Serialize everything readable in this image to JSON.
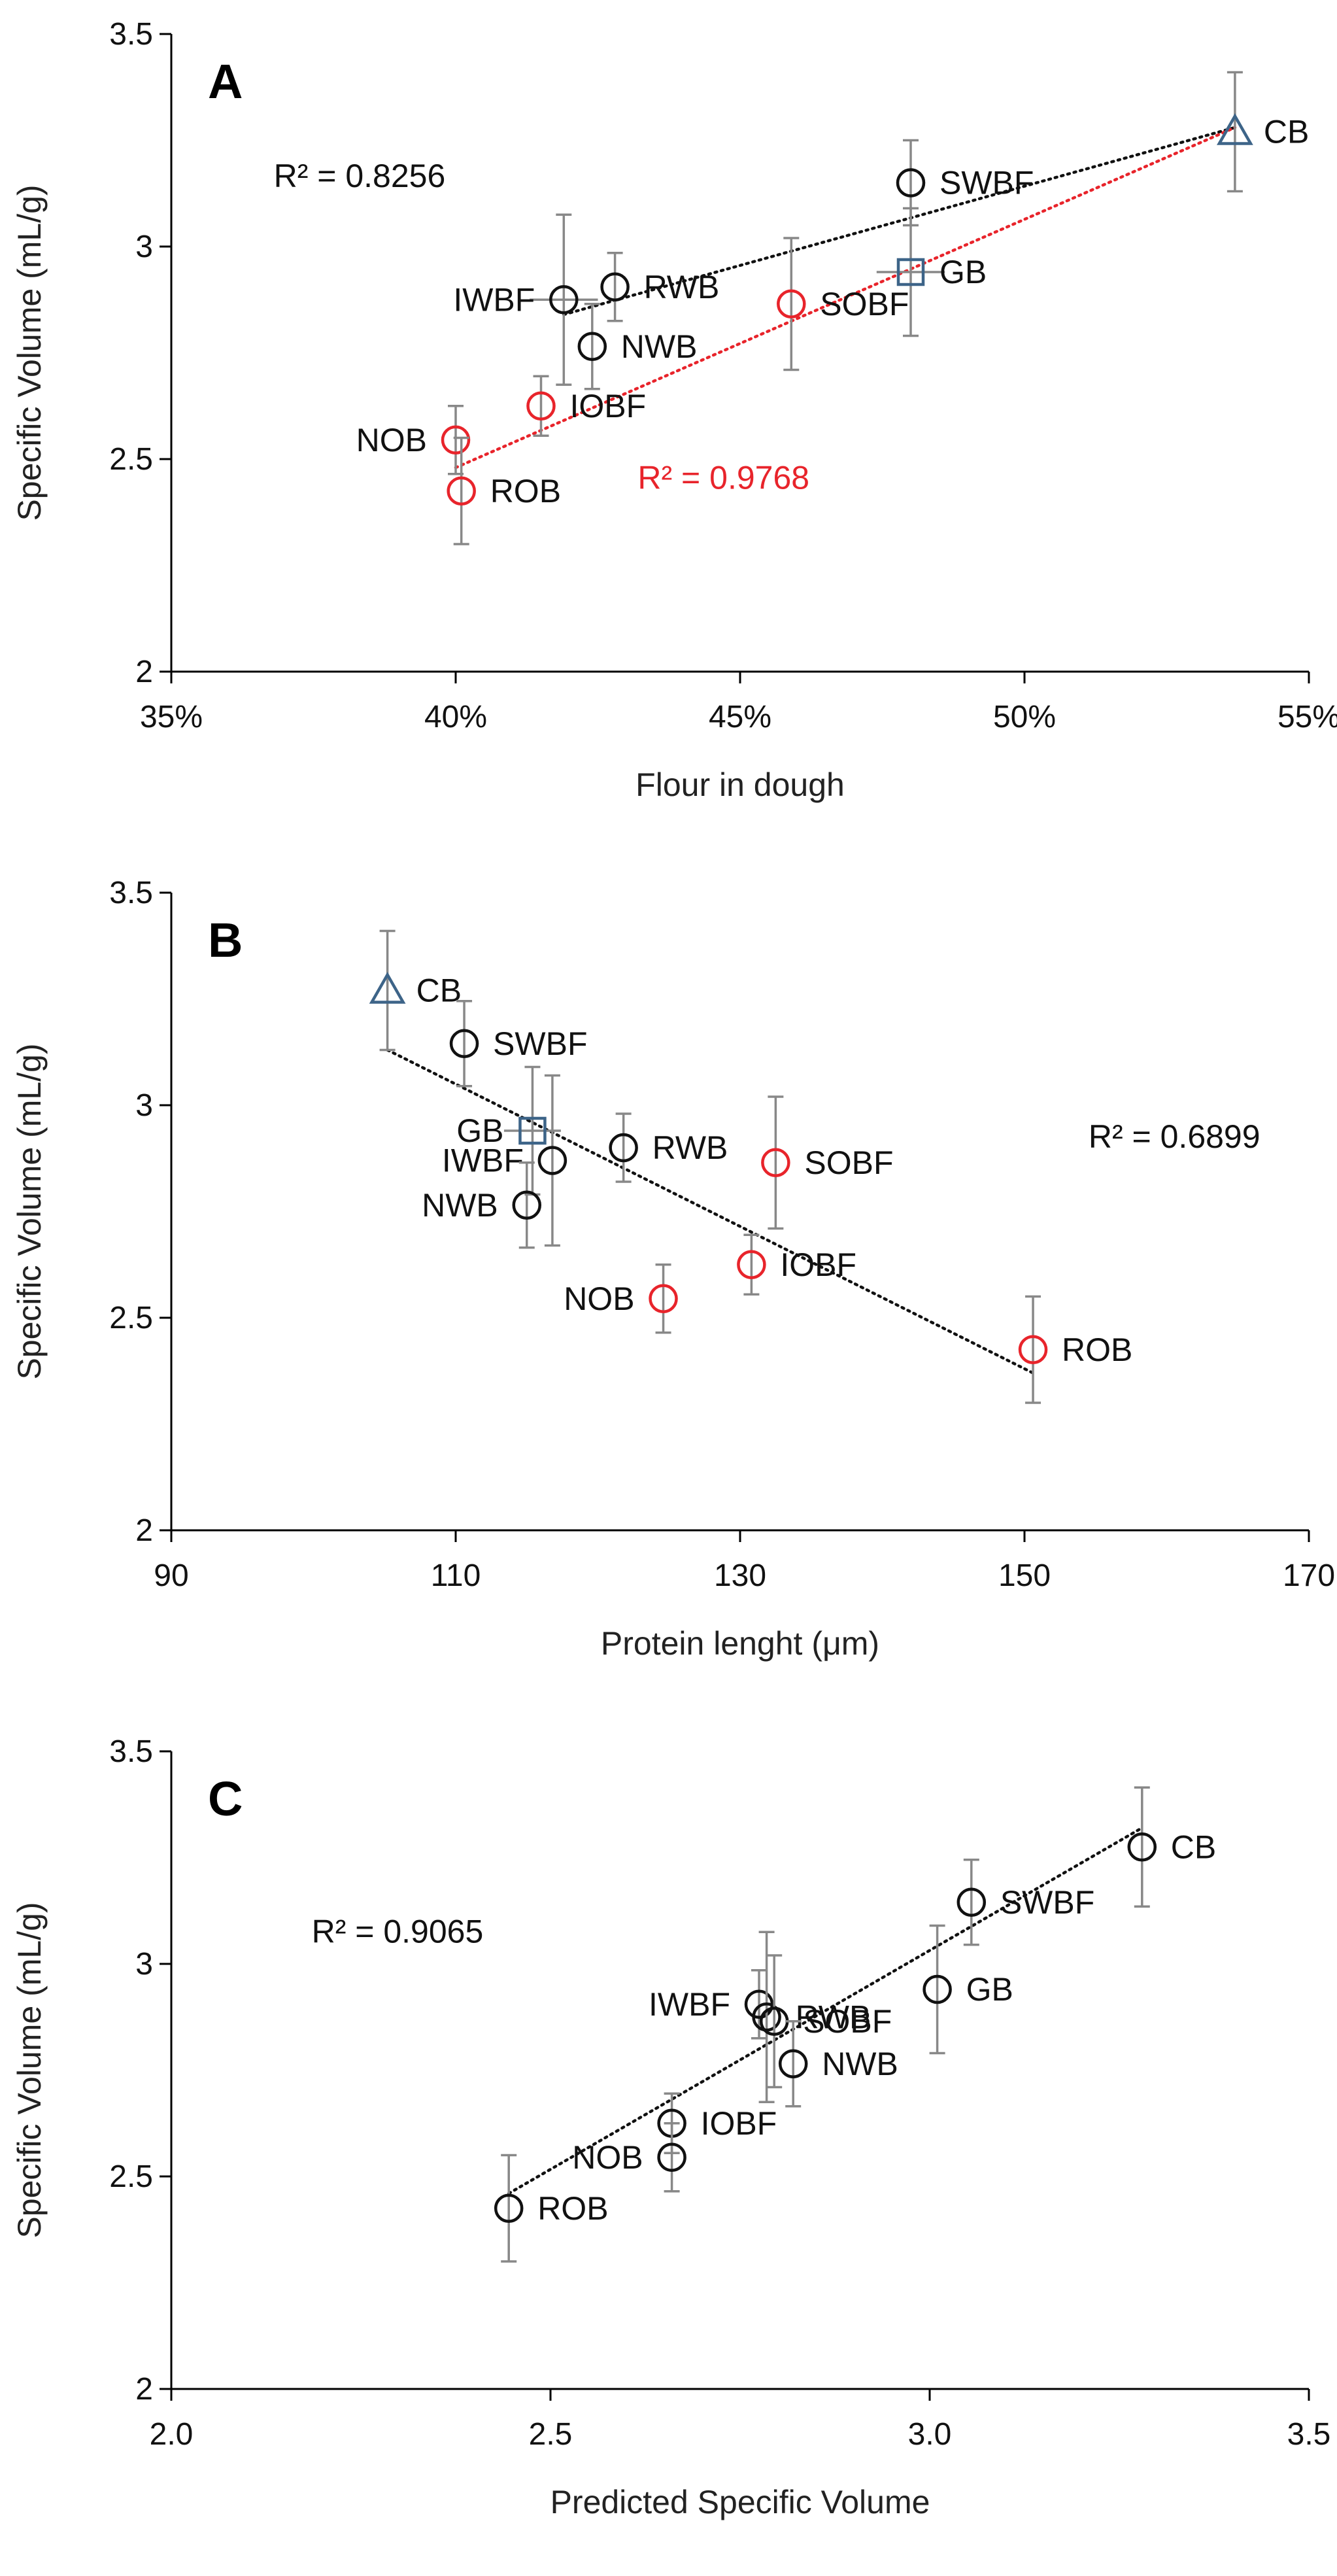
{
  "colors": {
    "black_series": "#111111",
    "red_series": "#e8242b",
    "blue_series": "#3d6488",
    "error_bar": "#888888",
    "axis": "#000000"
  },
  "chart_data": [
    {
      "type": "scatter",
      "panel_label": "A",
      "xlabel": "Flour in dough",
      "ylabel": "Specific Volume (mL/g)",
      "xlim": [
        0.35,
        0.55
      ],
      "ylim": [
        2,
        3.5
      ],
      "x_ticks": [
        0.35,
        0.4,
        0.45,
        0.5,
        0.55
      ],
      "x_tick_labels": [
        "35%",
        "40%",
        "45%",
        "50%",
        "55%"
      ],
      "y_ticks": [
        2,
        2.5,
        3,
        3.5
      ],
      "y_tick_labels": [
        "2",
        "2.5",
        "3",
        "3.5"
      ],
      "grid": false,
      "points": [
        {
          "label": "CB",
          "x": 0.537,
          "y": 3.27,
          "y_err": 0.14,
          "x_err": 0,
          "marker": "triangle",
          "color": "#3d6488",
          "label_pos": "right"
        },
        {
          "label": "SWBF",
          "x": 0.48,
          "y": 3.15,
          "y_err": 0.1,
          "x_err": 0,
          "marker": "circle",
          "color": "#111111",
          "label_pos": "right"
        },
        {
          "label": "GB",
          "x": 0.48,
          "y": 2.94,
          "y_err": 0.15,
          "x_err": 0.006,
          "marker": "square",
          "color": "#3d6488",
          "label_pos": "right"
        },
        {
          "label": "RWB",
          "x": 0.428,
          "y": 2.905,
          "y_err": 0.08,
          "x_err": 0,
          "marker": "circle",
          "color": "#111111",
          "label_pos": "right"
        },
        {
          "label": "IWBF",
          "x": 0.419,
          "y": 2.875,
          "y_err": 0.2,
          "x_err": 0.006,
          "marker": "circle",
          "color": "#111111",
          "label_pos": "left"
        },
        {
          "label": "SOBF",
          "x": 0.459,
          "y": 2.865,
          "y_err": 0.155,
          "x_err": 0,
          "marker": "circle",
          "color": "#e8242b",
          "label_pos": "right"
        },
        {
          "label": "NWB",
          "x": 0.424,
          "y": 2.765,
          "y_err": 0.1,
          "x_err": 0,
          "marker": "circle",
          "color": "#111111",
          "label_pos": "right"
        },
        {
          "label": "IOBF",
          "x": 0.415,
          "y": 2.625,
          "y_err": 0.07,
          "x_err": 0,
          "marker": "circle",
          "color": "#e8242b",
          "label_pos": "right"
        },
        {
          "label": "NOB",
          "x": 0.4,
          "y": 2.545,
          "y_err": 0.08,
          "x_err": 0,
          "marker": "circle",
          "color": "#e8242b",
          "label_pos": "left"
        },
        {
          "label": "ROB",
          "x": 0.401,
          "y": 2.425,
          "y_err": 0.125,
          "x_err": 0,
          "marker": "circle",
          "color": "#e8242b",
          "label_pos": "right"
        }
      ],
      "trendlines": [
        {
          "x": [
            0.419,
            0.537
          ],
          "y": [
            2.84,
            3.28
          ],
          "color": "#111111",
          "r2_label": "R² = 0.8256",
          "r2_anchor": [
            0.368,
            3.14
          ]
        },
        {
          "x": [
            0.4,
            0.537
          ],
          "y": [
            2.48,
            3.28
          ],
          "color": "#e8242b",
          "r2_label": "R² = 0.9768",
          "r2_anchor": [
            0.432,
            2.43
          ]
        }
      ]
    },
    {
      "type": "scatter",
      "panel_label": "B",
      "xlabel": "Protein lenght (μm)",
      "ylabel": "Specific Volume (mL/g)",
      "xlim": [
        90,
        170
      ],
      "ylim": [
        2,
        3.5
      ],
      "x_ticks": [
        90,
        110,
        130,
        150,
        170
      ],
      "x_tick_labels": [
        "90",
        "110",
        "130",
        "150",
        "170"
      ],
      "y_ticks": [
        2,
        2.5,
        3,
        3.5
      ],
      "y_tick_labels": [
        "2",
        "2.5",
        "3",
        "3.5"
      ],
      "grid": false,
      "points": [
        {
          "label": "CB",
          "x": 105.2,
          "y": 3.27,
          "y_err": 0.14,
          "x_err": 0,
          "marker": "triangle",
          "color": "#3d6488",
          "label_pos": "right"
        },
        {
          "label": "SWBF",
          "x": 110.6,
          "y": 3.145,
          "y_err": 0.1,
          "x_err": 0,
          "marker": "circle",
          "color": "#111111",
          "label_pos": "right"
        },
        {
          "label": "GB",
          "x": 115.4,
          "y": 2.94,
          "y_err": 0.15,
          "x_err": 2.0,
          "marker": "square",
          "color": "#3d6488",
          "label_pos": "left"
        },
        {
          "label": "RWB",
          "x": 121.8,
          "y": 2.9,
          "y_err": 0.08,
          "x_err": 0,
          "marker": "circle",
          "color": "#111111",
          "label_pos": "right"
        },
        {
          "label": "IWBF",
          "x": 116.8,
          "y": 2.87,
          "y_err": 0.2,
          "x_err": 0,
          "marker": "circle",
          "color": "#111111",
          "label_pos": "left"
        },
        {
          "label": "SOBF",
          "x": 132.5,
          "y": 2.865,
          "y_err": 0.155,
          "x_err": 0,
          "marker": "circle",
          "color": "#e8242b",
          "label_pos": "right"
        },
        {
          "label": "NWB",
          "x": 115.0,
          "y": 2.765,
          "y_err": 0.1,
          "x_err": 0,
          "marker": "circle",
          "color": "#111111",
          "label_pos": "left"
        },
        {
          "label": "IOBF",
          "x": 130.8,
          "y": 2.625,
          "y_err": 0.07,
          "x_err": 0,
          "marker": "circle",
          "color": "#e8242b",
          "label_pos": "right"
        },
        {
          "label": "NOB",
          "x": 124.6,
          "y": 2.545,
          "y_err": 0.08,
          "x_err": 0,
          "marker": "circle",
          "color": "#e8242b",
          "label_pos": "left"
        },
        {
          "label": "ROB",
          "x": 150.6,
          "y": 2.425,
          "y_err": 0.125,
          "x_err": 0,
          "marker": "circle",
          "color": "#e8242b",
          "label_pos": "right"
        }
      ],
      "trendlines": [
        {
          "x": [
            105.2,
            150.6
          ],
          "y": [
            3.13,
            2.37
          ],
          "color": "#111111",
          "r2_label": "R² = 0.6899",
          "r2_anchor": [
            154.5,
            2.9
          ]
        }
      ]
    },
    {
      "type": "scatter",
      "panel_label": "C",
      "xlabel": "Predicted Specific Volume",
      "ylabel": "Specific Volume (mL/g)",
      "xlim": [
        2.0,
        3.5
      ],
      "ylim": [
        2,
        3.5
      ],
      "x_ticks": [
        2.0,
        2.5,
        3.0,
        3.5
      ],
      "x_tick_labels": [
        "2.0",
        "2.5",
        "3.0",
        "3.5"
      ],
      "y_ticks": [
        2,
        2.5,
        3,
        3.5
      ],
      "y_tick_labels": [
        "2",
        "2.5",
        "3",
        "3.5"
      ],
      "grid": false,
      "points": [
        {
          "label": "CB",
          "x": 3.28,
          "y": 3.275,
          "y_err": 0.14,
          "x_err": 0,
          "marker": "circle",
          "color": "#111111",
          "label_pos": "right"
        },
        {
          "label": "SWBF",
          "x": 3.055,
          "y": 3.145,
          "y_err": 0.1,
          "x_err": 0,
          "marker": "circle",
          "color": "#111111",
          "label_pos": "right"
        },
        {
          "label": "GB",
          "x": 3.01,
          "y": 2.94,
          "y_err": 0.15,
          "x_err": 0,
          "marker": "circle",
          "color": "#111111",
          "label_pos": "right"
        },
        {
          "label": "IWBF",
          "x": 2.775,
          "y": 2.905,
          "y_err": 0.08,
          "x_err": 0,
          "marker": "circle",
          "color": "#111111",
          "label_pos": "left"
        },
        {
          "label": "RWB",
          "x": 2.785,
          "y": 2.875,
          "y_err": 0.2,
          "x_err": 0,
          "marker": "circle",
          "color": "#111111",
          "label_pos": "right"
        },
        {
          "label": "SOBF",
          "x": 2.795,
          "y": 2.865,
          "y_err": 0.155,
          "x_err": 0,
          "marker": "circle",
          "color": "#111111",
          "label_pos": "right"
        },
        {
          "label": "NWB",
          "x": 2.82,
          "y": 2.765,
          "y_err": 0.1,
          "x_err": 0,
          "marker": "circle",
          "color": "#111111",
          "label_pos": "right"
        },
        {
          "label": "IOBF",
          "x": 2.66,
          "y": 2.625,
          "y_err": 0.07,
          "x_err": 0,
          "marker": "circle",
          "color": "#111111",
          "label_pos": "right"
        },
        {
          "label": "NOB",
          "x": 2.66,
          "y": 2.545,
          "y_err": 0.08,
          "x_err": 0,
          "marker": "circle",
          "color": "#111111",
          "label_pos": "left"
        },
        {
          "label": "ROB",
          "x": 2.445,
          "y": 2.425,
          "y_err": 0.125,
          "x_err": 0,
          "marker": "circle",
          "color": "#111111",
          "label_pos": "right"
        }
      ],
      "trendlines": [
        {
          "x": [
            2.445,
            3.28
          ],
          "y": [
            2.46,
            3.32
          ],
          "color": "#111111",
          "r2_label": "R² = 0.9065",
          "r2_anchor": [
            2.185,
            3.05
          ]
        }
      ]
    }
  ]
}
